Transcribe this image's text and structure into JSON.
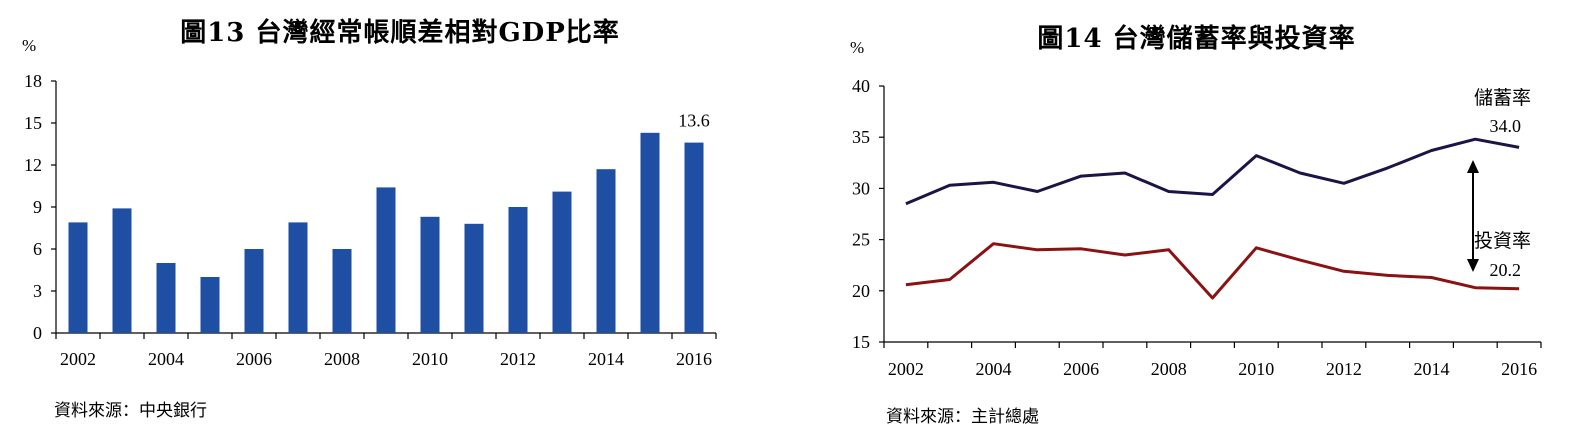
{
  "charts": {
    "left": {
      "title": "圖13 台灣經常帳順差相對GDP比率",
      "unit": "%",
      "source": "資料來源：中央銀行"
    },
    "right": {
      "title": "圖14 台灣儲蓄率與投資率",
      "unit": "%",
      "source": "資料來源：主計總處"
    }
  },
  "chart_data": [
    {
      "type": "bar",
      "title": "圖13 台灣經常帳順差相對GDP比率",
      "ylabel": "%",
      "categories": [
        "2002",
        "2003",
        "2004",
        "2005",
        "2006",
        "2007",
        "2008",
        "2009",
        "2010",
        "2011",
        "2012",
        "2013",
        "2014",
        "2015",
        "2016"
      ],
      "values": [
        7.9,
        8.9,
        5.0,
        4.0,
        6.0,
        7.9,
        6.0,
        10.4,
        8.3,
        7.8,
        9.0,
        10.1,
        11.7,
        14.3,
        13.6
      ],
      "xticks": [
        "2002",
        "2004",
        "2006",
        "2008",
        "2010",
        "2012",
        "2014",
        "2016"
      ],
      "yticks": [
        "0",
        "3",
        "6",
        "9",
        "12",
        "15",
        "18"
      ],
      "ylim": [
        0,
        18
      ],
      "annotation": "13.6",
      "bar_color": "#1F4FA2",
      "grid": false
    },
    {
      "type": "line",
      "title": "圖14 台灣儲蓄率與投資率",
      "ylabel": "%",
      "x": [
        "2002",
        "2003",
        "2004",
        "2005",
        "2006",
        "2007",
        "2008",
        "2009",
        "2010",
        "2011",
        "2012",
        "2013",
        "2014",
        "2015",
        "2016"
      ],
      "series": [
        {
          "name": "儲蓄率",
          "color": "#1B1446",
          "values": [
            28.5,
            30.3,
            30.6,
            29.7,
            31.2,
            31.5,
            29.7,
            29.4,
            33.2,
            31.5,
            30.5,
            32.0,
            33.7,
            34.8,
            34.0
          ],
          "end_label": "34.0"
        },
        {
          "name": "投資率",
          "color": "#8B1212",
          "values": [
            20.6,
            21.1,
            24.6,
            24.0,
            24.1,
            23.5,
            24.0,
            19.3,
            24.2,
            23.0,
            21.9,
            21.5,
            21.3,
            20.3,
            20.2
          ],
          "end_label": "20.2"
        }
      ],
      "xticks": [
        "2002",
        "2004",
        "2006",
        "2008",
        "2010",
        "2012",
        "2014",
        "2016"
      ],
      "yticks": [
        "15",
        "20",
        "25",
        "30",
        "35",
        "40"
      ],
      "ylim": [
        15,
        40
      ],
      "grid": false
    }
  ]
}
